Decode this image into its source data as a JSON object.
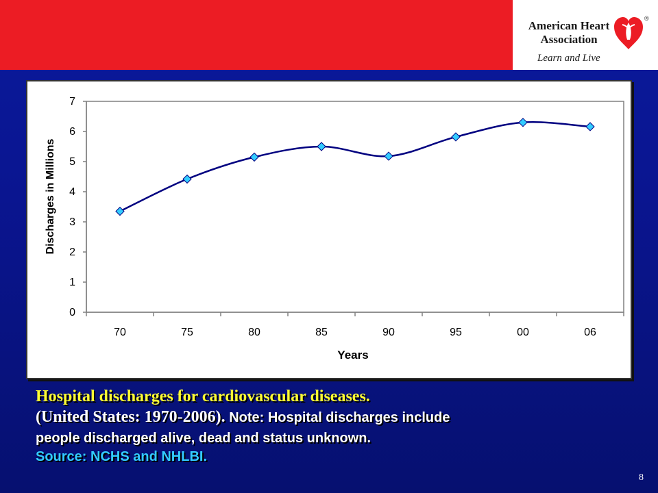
{
  "brand": {
    "name_line1": "American Heart",
    "name_line2": "Association",
    "tagline": "Learn and Live",
    "registered": "®"
  },
  "colors": {
    "top_band": "#ec1c24",
    "background": "#0a1a9c",
    "caption_title": "#ffff33",
    "caption_source": "#33ccff",
    "line": "#000080",
    "marker": "#33ccff"
  },
  "chart_data": {
    "type": "line",
    "title": "",
    "xlabel": "Years",
    "ylabel": "Discharges in Millions",
    "categories": [
      "70",
      "75",
      "80",
      "85",
      "90",
      "95",
      "00",
      "06"
    ],
    "values": [
      3.35,
      4.42,
      5.15,
      5.5,
      5.18,
      5.82,
      6.3,
      6.16
    ],
    "ylim": [
      0,
      7
    ],
    "yticks": [
      "0",
      "1",
      "2",
      "3",
      "4",
      "5",
      "6",
      "7"
    ],
    "grid": false,
    "legend": false,
    "line_style": "smooth",
    "marker": "diamond"
  },
  "caption": {
    "title": "Hospital discharges for cardiovascular diseases.",
    "subtitle_serif": "(United States: 1970-2006).",
    "note_start": " Note: Hospital discharges include",
    "note_end": "people discharged alive, dead and status unknown.",
    "source": "Source: NCHS and NHLBI."
  },
  "slide_number": "8"
}
